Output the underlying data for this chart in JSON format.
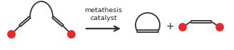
{
  "bg_color": "#ffffff",
  "text_catalyst": "metathesis\ncatalyst",
  "text_plus": "+",
  "red_color": "#e8282a",
  "black_color": "#222222",
  "line_color": "#333333",
  "arrow_color": "#333333",
  "lw": 1.3,
  "rdot_r": 5.2
}
